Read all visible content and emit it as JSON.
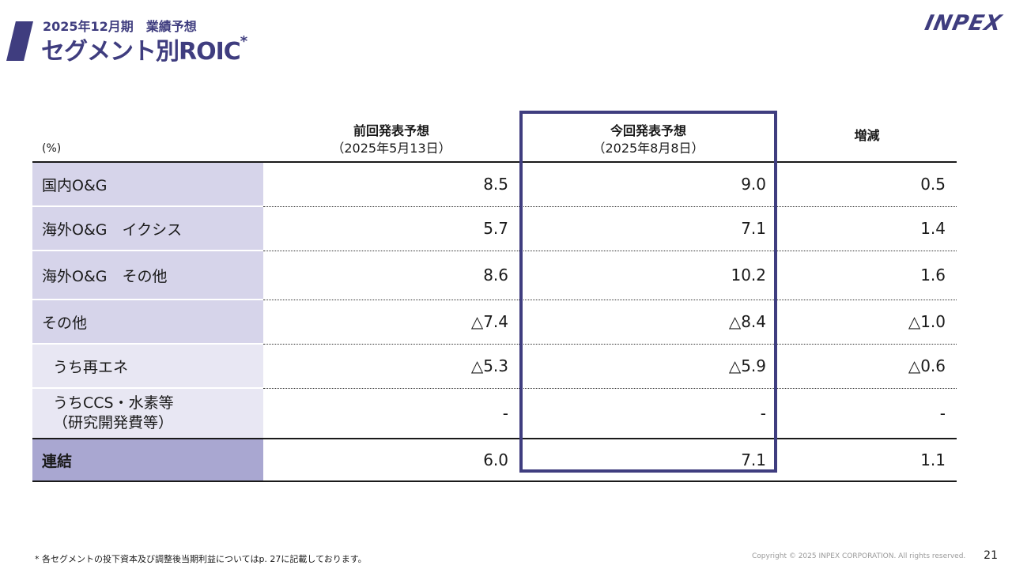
{
  "header": {
    "subtitle": "2025年12月期　業績予想",
    "title": "セグメント別ROIC",
    "title_mark": "*",
    "logo": "INPEX"
  },
  "table": {
    "unit_label": "(%)",
    "columns": [
      {
        "title": "前回発表予想",
        "date": "（2025年5月13日）"
      },
      {
        "title": "今回発表予想",
        "date": "（2025年8月8日）"
      },
      {
        "title": "増減",
        "date": ""
      }
    ],
    "rows": [
      {
        "label": "国内O&G",
        "prev": "8.5",
        "curr": "9.0",
        "diff": "0.5"
      },
      {
        "label": "海外O&G　イクシス",
        "prev": "5.7",
        "curr": "7.1",
        "diff": "1.4"
      },
      {
        "label": "海外O&G　その他",
        "prev": "8.6",
        "curr": "10.2",
        "diff": "1.6"
      },
      {
        "label": "その他",
        "prev": "△7.4",
        "curr": "△8.4",
        "diff": "△1.0"
      },
      {
        "label": "うち再エネ",
        "prev": "△5.3",
        "curr": "△5.9",
        "diff": "△0.6"
      },
      {
        "label": "うちCCS・水素等",
        "label2": "（研究開発費等）",
        "prev": "-",
        "curr": "-",
        "diff": "-"
      }
    ],
    "total": {
      "label": "連結",
      "prev": "6.0",
      "curr": "7.1",
      "diff": "1.1"
    }
  },
  "footer": {
    "footnote": "* 各セグメントの投下資本及び調整後当期利益についてはp. 27に記載しております。",
    "copyright": "Copyright © 2025 INPEX CORPORATION. All rights reserved.",
    "page_number": "21"
  },
  "colors": {
    "brand": "#3f3d7f",
    "label_bg": "#d6d4ea",
    "label_sub_bg": "#e8e7f3",
    "total_bg": "#a9a7d1"
  }
}
